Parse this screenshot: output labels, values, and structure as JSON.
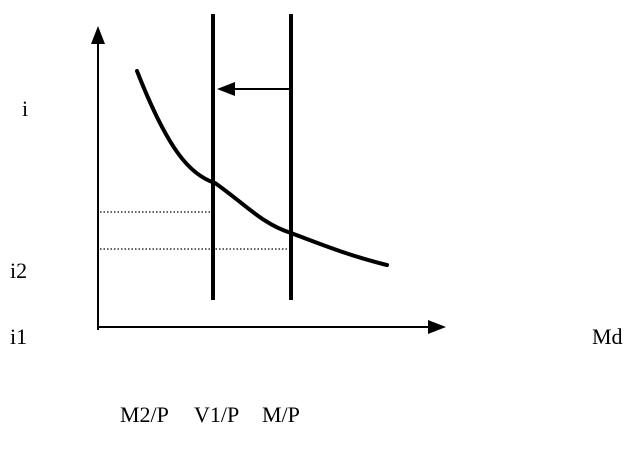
{
  "labels": {
    "i": "i",
    "i2": "i2",
    "i1": "i1",
    "md": "Md",
    "m2p": "M2/P",
    "v1p": "V1/P",
    "mp": "M/P"
  },
  "colors": {
    "stroke": "#000000",
    "background": "#ffffff"
  }
}
